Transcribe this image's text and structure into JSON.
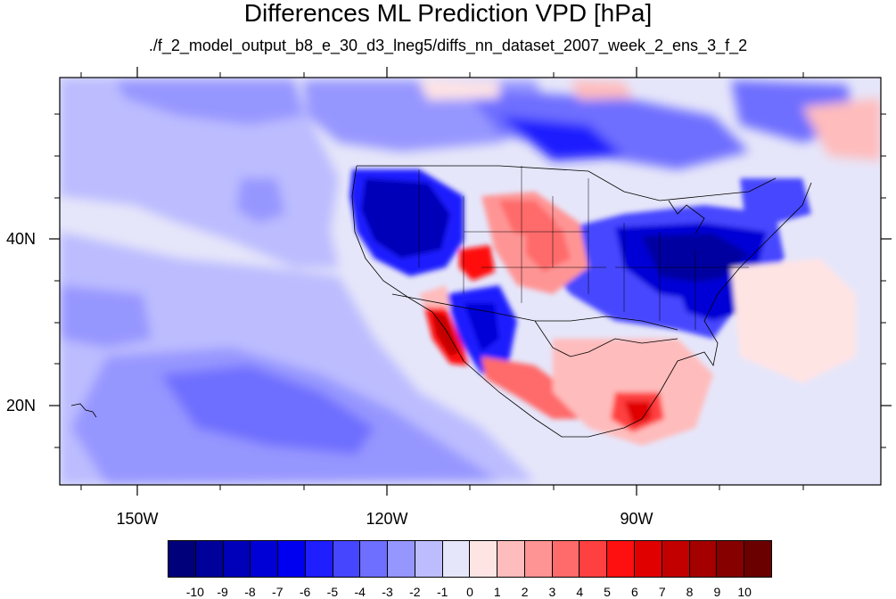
{
  "title": "Differences ML Prediction VPD [hPa]",
  "subtitle": "./f_2_model_output_b8_e_30_d3_lneg5/diffs_nn_dataset_2007_week_2_ens_3_f_2",
  "map": {
    "lon_labels": [
      "150W",
      "120W",
      "90W"
    ],
    "lat_labels": [
      "40N",
      "20N"
    ]
  },
  "colorbar": {
    "labels": [
      "-10",
      "-9",
      "-8",
      "-7",
      "-6",
      "-5",
      "-4",
      "-3",
      "-2",
      "-1",
      "0",
      "1",
      "2",
      "3",
      "4",
      "5",
      "6",
      "7",
      "8",
      "9",
      "10"
    ],
    "colors": [
      "#00007a",
      "#00009a",
      "#0000b8",
      "#0000d6",
      "#0000f0",
      "#1e1eff",
      "#4646ff",
      "#6e6eff",
      "#9696ff",
      "#bcbcff",
      "#e6e6fa",
      "#ffe4e4",
      "#ffbcbc",
      "#ff9494",
      "#ff6a6a",
      "#ff4040",
      "#ff1010",
      "#e00000",
      "#c20000",
      "#a40000",
      "#860000",
      "#6a0000"
    ]
  }
}
